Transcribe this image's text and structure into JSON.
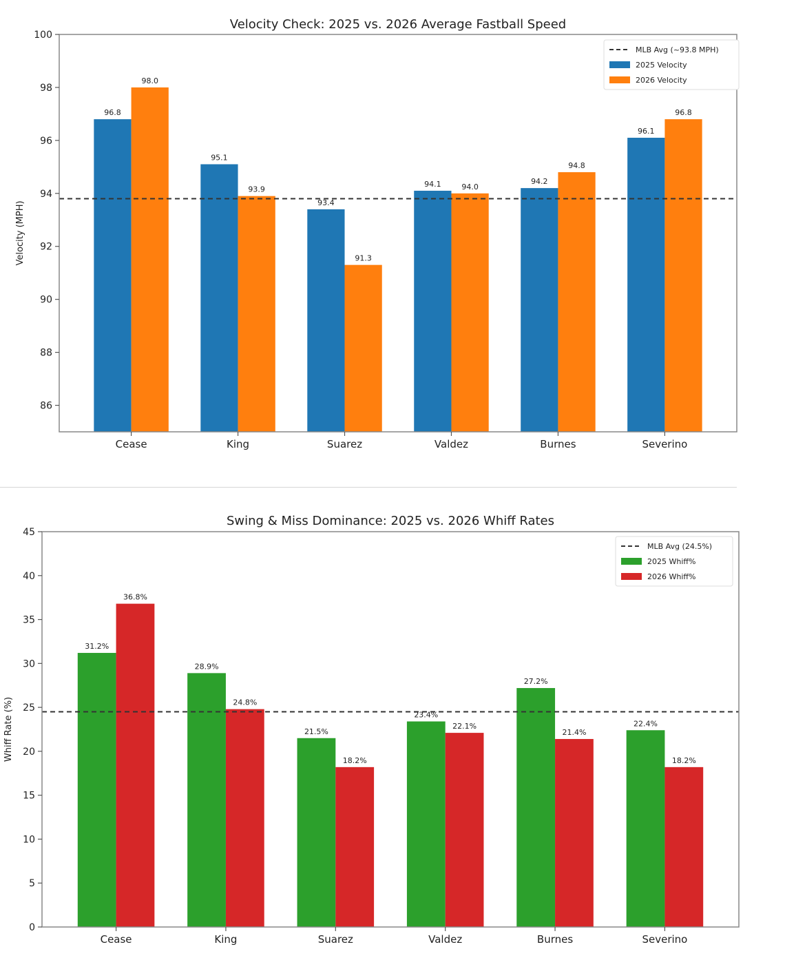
{
  "chart_data": [
    {
      "type": "bar",
      "title": "Velocity Check: 2025 vs. 2026 Average Fastball Speed",
      "xlabel": "",
      "ylabel": "Velocity (MPH)",
      "ylim": [
        85,
        100
      ],
      "yticks": [
        86,
        88,
        90,
        92,
        94,
        96,
        98,
        100
      ],
      "categories": [
        "Cease",
        "King",
        "Suarez",
        "Valdez",
        "Burnes",
        "Severino"
      ],
      "series": [
        {
          "name": "2025 Velocity",
          "color": "#1f77b4",
          "values": [
            96.8,
            95.1,
            93.4,
            94.1,
            94.2,
            96.1
          ],
          "labels": [
            "96.8",
            "95.1",
            "93.4",
            "94.1",
            "94.2",
            "96.1"
          ]
        },
        {
          "name": "2026 Velocity",
          "color": "#ff7f0e",
          "values": [
            98.0,
            93.9,
            91.3,
            94.0,
            94.8,
            96.8
          ],
          "labels": [
            "98.0",
            "93.9",
            "91.3",
            "94.0",
            "94.8",
            "96.8"
          ]
        }
      ],
      "reference_line": {
        "label": "MLB Avg (~93.8 MPH)",
        "value": 93.8
      },
      "legend_position": "top-right",
      "grid": false
    },
    {
      "type": "bar",
      "title": "Swing & Miss Dominance: 2025 vs. 2026 Whiff Rates",
      "xlabel": "",
      "ylabel": "Whiff Rate (%)",
      "ylim": [
        0,
        45
      ],
      "yticks": [
        0,
        5,
        10,
        15,
        20,
        25,
        30,
        35,
        40,
        45
      ],
      "categories": [
        "Cease",
        "King",
        "Suarez",
        "Valdez",
        "Burnes",
        "Severino"
      ],
      "series": [
        {
          "name": "2025 Whiff%",
          "color": "#2ca02c",
          "values": [
            31.2,
            28.9,
            21.5,
            23.4,
            27.2,
            22.4
          ],
          "labels": [
            "31.2%",
            "28.9%",
            "21.5%",
            "23.4%",
            "27.2%",
            "22.4%"
          ]
        },
        {
          "name": "2026 Whiff%",
          "color": "#d62728",
          "values": [
            36.8,
            24.8,
            18.2,
            22.1,
            21.4,
            18.2
          ],
          "labels": [
            "36.8%",
            "24.8%",
            "18.2%",
            "22.1%",
            "21.4%",
            "18.2%"
          ]
        }
      ],
      "reference_line": {
        "label": "MLB Avg (24.5%)",
        "value": 24.5
      },
      "legend_position": "top-right",
      "grid": false
    }
  ]
}
